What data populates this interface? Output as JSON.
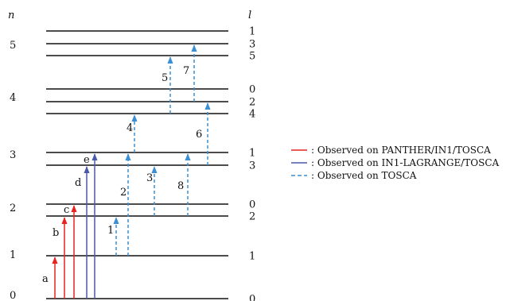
{
  "axis_headers": {
    "left": "n",
    "right": "l"
  },
  "n_labels": [
    "0",
    "1",
    "2",
    "3",
    "4",
    "5"
  ],
  "levels": [
    {
      "id": "n0",
      "l": "0"
    },
    {
      "id": "n1",
      "l": "1"
    },
    {
      "id": "n2l2",
      "l": "2"
    },
    {
      "id": "n2l0",
      "l": "0"
    },
    {
      "id": "n3l3",
      "l": "3"
    },
    {
      "id": "n3l1",
      "l": "1"
    },
    {
      "id": "n4l4",
      "l": "4"
    },
    {
      "id": "n4l2",
      "l": "2"
    },
    {
      "id": "n4l0",
      "l": "0"
    },
    {
      "id": "n5l5",
      "l": "5"
    },
    {
      "id": "n5l3",
      "l": "3"
    },
    {
      "id": "n5l1",
      "l": "1"
    }
  ],
  "transitions": [
    {
      "label": "a",
      "from": "n0",
      "to": "n1",
      "type": "red"
    },
    {
      "label": "b",
      "from": "n0",
      "to": "n2l2",
      "type": "red"
    },
    {
      "label": "c",
      "from": "n0",
      "to": "n2l0",
      "type": "red"
    },
    {
      "label": "d",
      "from": "n0",
      "to": "n3l3",
      "type": "blue"
    },
    {
      "label": "e",
      "from": "n0",
      "to": "n3l1",
      "type": "blue"
    },
    {
      "label": "1",
      "from": "n1",
      "to": "n2l2",
      "type": "dashed"
    },
    {
      "label": "2",
      "from": "n1",
      "to": "n3l1",
      "type": "dashed"
    },
    {
      "label": "3",
      "from": "n2l2",
      "to": "n3l3",
      "type": "dashed"
    },
    {
      "label": "4",
      "from": "n3l1",
      "to": "n4l4",
      "type": "dashed"
    },
    {
      "label": "8",
      "from": "n2l2",
      "to": "n3l1",
      "type": "dashed"
    },
    {
      "label": "6",
      "from": "n3l3",
      "to": "n4l2",
      "type": "dashed"
    },
    {
      "label": "5",
      "from": "n4l4",
      "to": "n5l5",
      "type": "dashed"
    },
    {
      "label": "7",
      "from": "n4l2",
      "to": "n5l3",
      "type": "dashed"
    }
  ],
  "legend": [
    {
      "type": "red",
      "text": ": Observed on PANTHER/IN1/TOSCA"
    },
    {
      "type": "blue",
      "text": ": Observed on IN1-LAGRANGE/TOSCA"
    },
    {
      "type": "dashed",
      "text": ": Observed on TOSCA"
    }
  ],
  "colors": {
    "red": "#e8231f",
    "blue": "#4a5aa8",
    "dashed": "#3b8fd4",
    "level": "#111111"
  }
}
